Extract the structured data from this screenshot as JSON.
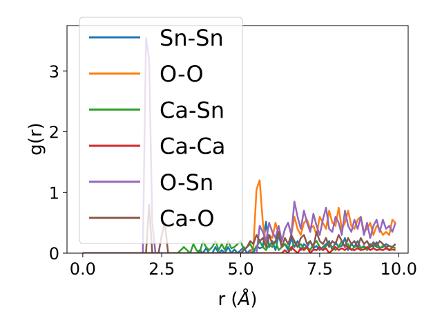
{
  "chart_data": {
    "type": "line",
    "xlabel": "r (",
    "xlabel_unit": "Å",
    "xlabel_close": ")",
    "ylabel": "g(r)",
    "xlim": [
      -0.5,
      10.3
    ],
    "ylim": [
      0,
      3.75
    ],
    "xticks": [
      0.0,
      2.5,
      5.0,
      7.5,
      10.0
    ],
    "xtick_labels": [
      "0.0",
      "2.5",
      "5.0",
      "7.5",
      "10.0"
    ],
    "yticks": [
      0,
      1,
      2,
      3
    ],
    "ytick_labels": [
      "0",
      "1",
      "2",
      "3"
    ],
    "grid": false,
    "legend_position": "top-left",
    "x": [
      0.0,
      0.1,
      0.2,
      0.3,
      0.4,
      0.5,
      0.6,
      0.7,
      0.8,
      0.9,
      1.0,
      1.1,
      1.2,
      1.3,
      1.4,
      1.5,
      1.6,
      1.7,
      1.8,
      1.9,
      2.0,
      2.1,
      2.2,
      2.3,
      2.4,
      2.5,
      2.6,
      2.7,
      2.8,
      2.9,
      3.0,
      3.1,
      3.2,
      3.3,
      3.4,
      3.5,
      3.6,
      3.7,
      3.8,
      3.9,
      4.0,
      4.1,
      4.2,
      4.3,
      4.4,
      4.5,
      4.6,
      4.7,
      4.8,
      4.9,
      5.0,
      5.1,
      5.2,
      5.3,
      5.4,
      5.5,
      5.6,
      5.7,
      5.8,
      5.9,
      6.0,
      6.1,
      6.2,
      6.3,
      6.4,
      6.5,
      6.6,
      6.7,
      6.8,
      6.9,
      7.0,
      7.1,
      7.2,
      7.3,
      7.4,
      7.5,
      7.6,
      7.7,
      7.8,
      7.9,
      8.0,
      8.1,
      8.2,
      8.3,
      8.4,
      8.5,
      8.6,
      8.7,
      8.8,
      8.9,
      9.0,
      9.1,
      9.2,
      9.3,
      9.4,
      9.5,
      9.6,
      9.7,
      9.8,
      9.9
    ],
    "series": [
      {
        "name": "Sn-Sn",
        "color": "#1f77b4",
        "values": [
          0,
          0,
          0,
          0,
          0,
          0,
          0,
          0,
          0,
          0,
          0,
          0,
          0,
          0,
          0,
          0,
          0,
          0,
          0,
          0,
          0,
          0,
          0,
          0,
          0,
          0,
          0,
          0,
          0,
          0,
          0,
          0,
          0,
          0,
          0,
          0,
          0,
          0.05,
          0,
          0.08,
          0,
          0,
          0.1,
          0,
          0.05,
          0,
          0.1,
          0,
          0.06,
          0,
          0.05,
          0.1,
          0,
          0.05,
          0,
          0.12,
          0.08,
          0.1,
          0.52,
          0.1,
          0.2,
          0.05,
          0.3,
          0.1,
          0.15,
          0.05,
          0.25,
          0.1,
          0.2,
          0.05,
          0.15,
          0.1,
          0.2,
          0.08,
          0.12,
          0.05,
          0.1,
          0.15,
          0.2,
          0.05,
          0.18,
          0.1,
          0.12,
          0.25,
          0.05,
          0.15,
          0.1,
          0.2,
          0.08,
          0.12,
          0.06,
          0.15,
          0.1,
          0.18,
          0.08,
          0.1,
          0.15,
          0.12,
          0.1,
          0.15
        ]
      },
      {
        "name": "O-O",
        "color": "#ff7f0e",
        "values": [
          0,
          0,
          0,
          0,
          0,
          0,
          0,
          0,
          0,
          0,
          0,
          0,
          0,
          0,
          0,
          0,
          0,
          0,
          0,
          0,
          0,
          0,
          0,
          0,
          0,
          0,
          0,
          0,
          0,
          0,
          0,
          0,
          0,
          0,
          0,
          0,
          0,
          0,
          0,
          0,
          0,
          0,
          0,
          0,
          0,
          0,
          0,
          0,
          0,
          0,
          0,
          0,
          0,
          0,
          0.1,
          1.05,
          1.2,
          0.5,
          0.15,
          0.3,
          0.25,
          0.5,
          0.3,
          0.2,
          0.4,
          0.5,
          0.3,
          0.6,
          0.4,
          0.3,
          0.5,
          0.55,
          0.4,
          0.45,
          0.3,
          0.6,
          0.5,
          0.4,
          0.7,
          0.5,
          0.45,
          0.75,
          0.4,
          0.5,
          0.7,
          0.45,
          0.4,
          0.55,
          0.6,
          0.35,
          0.4,
          0.5,
          0.3,
          0.45,
          0.4,
          0.3,
          0.35,
          0.3,
          0.55,
          0.5
        ]
      },
      {
        "name": "Ca-Sn",
        "color": "#2ca02c",
        "values": [
          0,
          0,
          0,
          0,
          0,
          0,
          0,
          0,
          0,
          0,
          0,
          0,
          0,
          0,
          0,
          0,
          0,
          0,
          0,
          0,
          0,
          0,
          0,
          0,
          0,
          0,
          0,
          0,
          0,
          0,
          0,
          0.05,
          0.1,
          0.05,
          0,
          0.15,
          0.05,
          0,
          0.2,
          0.1,
          0.05,
          0.1,
          0.2,
          0.05,
          0.15,
          0.05,
          0.2,
          0.08,
          0.1,
          0.15,
          0.2,
          0.05,
          0.1,
          0.15,
          0.05,
          0.1,
          0.2,
          0.1,
          0.05,
          0.15,
          0.1,
          0.2,
          0.05,
          0.1,
          0.15,
          0.1,
          0.05,
          0.2,
          0.1,
          0.15,
          0.08,
          0.1,
          0.05,
          0.15,
          0.2,
          0.1,
          0.05,
          0.12,
          0.15,
          0.1,
          0.05,
          0.1,
          0.2,
          0.1,
          0.15,
          0.05,
          0.1,
          0.12,
          0.08,
          0.1,
          0.05,
          0.1,
          0.15,
          0.1,
          0.08,
          0.12,
          0.1,
          0.05,
          0.1,
          0.08
        ]
      },
      {
        "name": "Ca-Ca",
        "color": "#d62728",
        "values": [
          0,
          0,
          0,
          0,
          0,
          0,
          0,
          0,
          0,
          0,
          0,
          0,
          0,
          0,
          0,
          0,
          0,
          0,
          0,
          0,
          0,
          0,
          0,
          0,
          0,
          0,
          0,
          0,
          0,
          0,
          0,
          0,
          0,
          0,
          0,
          0,
          0,
          0,
          0,
          0,
          0,
          0,
          0,
          0,
          0,
          0,
          0,
          0,
          0,
          0,
          0,
          0,
          0,
          0,
          0,
          0,
          0,
          0,
          0,
          0,
          0,
          0,
          0,
          0,
          0.05,
          0,
          0.1,
          0.05,
          0,
          0.08,
          0.05,
          0.1,
          0,
          0.06,
          0.05,
          0.1,
          0.05,
          0.08,
          0,
          0.05,
          0.1,
          0.05,
          0.08,
          0.05,
          0.1,
          0.06,
          0.05,
          0.08,
          0.05,
          0.06,
          0.1,
          0.05,
          0.08,
          0.05,
          0.06,
          0.05,
          0.08,
          0.05,
          0.06,
          0.05
        ]
      },
      {
        "name": "O-Sn",
        "color": "#9467bd",
        "values": [
          0,
          0,
          0,
          0,
          0,
          0,
          0,
          0,
          0,
          0,
          0,
          0,
          0,
          0,
          0,
          0,
          0,
          0,
          0,
          0,
          3.55,
          3.2,
          0.5,
          0,
          0,
          0,
          0,
          0,
          0,
          0,
          0,
          0,
          0,
          0,
          0,
          0,
          0,
          0,
          0,
          0,
          0,
          0,
          0,
          0,
          0,
          0,
          0,
          0,
          0,
          0,
          0,
          0,
          0,
          0,
          0,
          0,
          0.45,
          0.35,
          0.2,
          0.5,
          0.35,
          0.25,
          0.45,
          0.2,
          0.4,
          0.5,
          0.3,
          0.85,
          0.6,
          0.4,
          0.7,
          0.5,
          0.35,
          0.65,
          0.45,
          0.3,
          0.55,
          0.75,
          0.4,
          0.35,
          0.6,
          0.5,
          0.3,
          0.7,
          0.45,
          0.35,
          0.55,
          0.4,
          0.6,
          0.3,
          0.5,
          0.25,
          0.45,
          0.55,
          0.35,
          0.55,
          0.4,
          0.45,
          0.35,
          0.5
        ]
      },
      {
        "name": "Ca-O",
        "color": "#8c564b",
        "values": [
          0,
          0,
          0,
          0,
          0,
          0,
          0,
          0,
          0,
          0,
          0,
          0,
          0,
          0,
          0,
          0,
          0,
          0,
          0,
          0,
          0,
          0.8,
          0,
          0,
          0,
          0.3,
          0.5,
          0,
          0,
          0,
          0,
          0,
          0,
          0,
          0,
          0,
          0,
          0,
          0,
          0,
          0,
          0,
          0,
          0,
          0,
          0,
          0,
          0,
          0,
          0,
          0,
          0.05,
          0.1,
          0.2,
          0.15,
          0.3,
          0.2,
          0.25,
          0.1,
          0.3,
          0.15,
          0.2,
          0.35,
          0.1,
          0.25,
          0.15,
          0.3,
          0.2,
          0.1,
          0.25,
          0.3,
          0.15,
          0.2,
          0.1,
          0.35,
          0.2,
          0.15,
          0.25,
          0.1,
          0.2,
          0.15,
          0.3,
          0.2,
          0.1,
          0.25,
          0.15,
          0.2,
          0.1,
          0.25,
          0.15,
          0.2,
          0.1,
          0.18,
          0.12,
          0.2,
          0.15,
          0.1,
          0.12,
          0.1,
          0.15
        ]
      }
    ]
  }
}
